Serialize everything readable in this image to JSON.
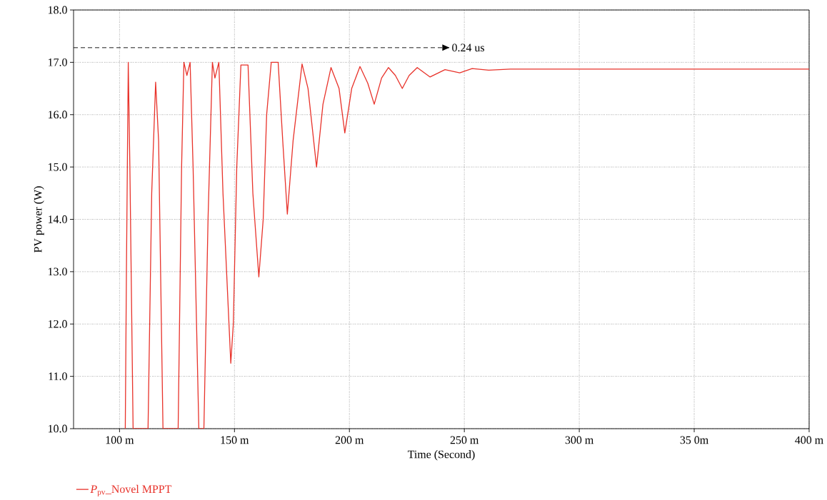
{
  "chart_data": {
    "type": "line",
    "xlabel": "Time (Second)",
    "ylabel": "PV power (W)",
    "xlim": [
      80,
      400
    ],
    "ylim": [
      10,
      18
    ],
    "xticks": [
      {
        "value": 100,
        "label": "100 m"
      },
      {
        "value": 150,
        "label": "150 m"
      },
      {
        "value": 200,
        "label": "200 m"
      },
      {
        "value": 250,
        "label": "250 m"
      },
      {
        "value": 300,
        "label": "300 m"
      },
      {
        "value": 350,
        "label": "35 0m"
      },
      {
        "value": 400,
        "label": "400 m"
      }
    ],
    "yticks": [
      {
        "value": 10,
        "label": "10.0"
      },
      {
        "value": 11,
        "label": "11.0"
      },
      {
        "value": 12,
        "label": "12.0"
      },
      {
        "value": 13,
        "label": "13.0"
      },
      {
        "value": 14,
        "label": "14.0"
      },
      {
        "value": 15,
        "label": "15.0"
      },
      {
        "value": 16,
        "label": "16.0"
      },
      {
        "value": 17,
        "label": "17.0"
      },
      {
        "value": 18,
        "label": "18.0"
      }
    ],
    "grid": true,
    "legend": "bottom left",
    "marker": "none",
    "line_style": "solid",
    "ref_lines": [
      {
        "axis": "y",
        "value": 17.28,
        "label": "0.24 us",
        "color": "#000000",
        "line_style": "dashed"
      }
    ],
    "series": [
      {
        "name": "*P*$_{pv}$_Novel MPPT",
        "color": "#e8322a",
        "x": [
          102.5,
          103.0,
          103.8,
          104.5,
          105.9,
          112.4,
          114.0,
          115.7,
          117.0,
          118.9,
          125.5,
          127.0,
          128.0,
          129.3,
          130.7,
          132.0,
          134.5,
          136.7,
          138.5,
          140.4,
          141.5,
          143.2,
          145.0,
          148.4,
          149.5,
          151.0,
          152.8,
          155.9,
          158.0,
          160.6,
          162.5,
          164.0,
          166.0,
          169.0,
          171.0,
          173.0,
          175.5,
          179.4,
          182.0,
          185.7,
          188.5,
          192.0,
          195.5,
          198.0,
          201.0,
          204.6,
          208.0,
          210.8,
          214.0,
          217.0,
          220.0,
          223.0,
          226.0,
          229.5,
          235.1,
          241.6,
          248.0,
          253.4,
          260.6,
          270,
          300,
          350,
          400
        ],
        "values": [
          10,
          13.0,
          17.0,
          15.0,
          10,
          10,
          14.5,
          16.62,
          15.5,
          10,
          10,
          15.0,
          17.0,
          16.75,
          17.0,
          15.0,
          10,
          10,
          14.0,
          17.0,
          16.7,
          17.0,
          14.5,
          11.25,
          12.0,
          15.0,
          16.95,
          16.95,
          14.5,
          12.9,
          14.0,
          16.0,
          17.0,
          17.0,
          15.5,
          14.1,
          15.5,
          16.97,
          16.5,
          15.0,
          16.2,
          16.9,
          16.5,
          15.65,
          16.5,
          16.92,
          16.6,
          16.2,
          16.7,
          16.9,
          16.75,
          16.5,
          16.75,
          16.9,
          16.72,
          16.86,
          16.8,
          16.88,
          16.85,
          16.87,
          16.87,
          16.87,
          16.87
        ]
      }
    ]
  }
}
